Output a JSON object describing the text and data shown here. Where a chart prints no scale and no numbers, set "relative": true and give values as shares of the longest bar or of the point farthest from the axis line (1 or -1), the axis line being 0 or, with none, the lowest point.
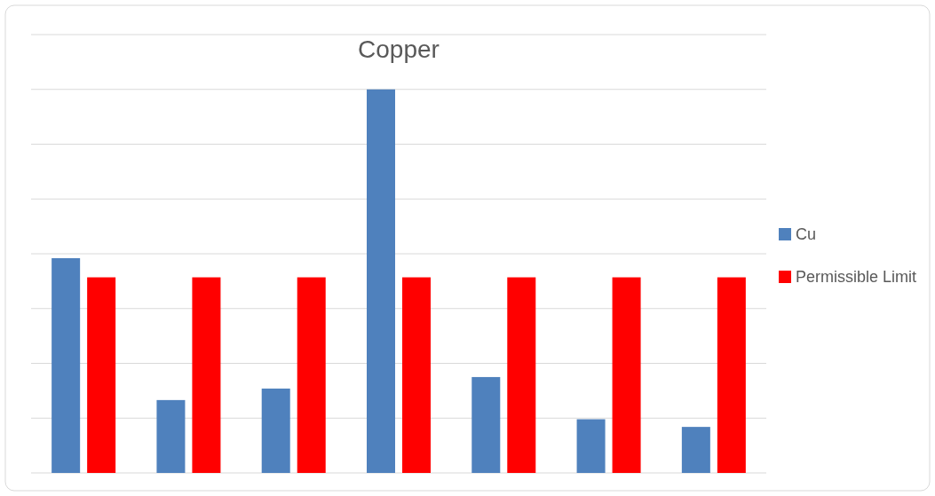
{
  "chart_data": {
    "type": "bar",
    "title": "Copper",
    "relative": true,
    "categories": [
      null,
      null,
      null,
      null,
      null,
      null,
      null
    ],
    "series": [
      {
        "name": "Cu",
        "color": "#4f81bd",
        "values": [
          0.56,
          0.19,
          0.22,
          1,
          0.25,
          0.14,
          0.12
        ]
      },
      {
        "name": "Permissible Limit",
        "color": "#ff0000",
        "values": [
          0.51,
          0.51,
          0.51,
          0.51,
          0.51,
          0.51,
          0.51
        ]
      }
    ],
    "grid": "y",
    "legend": "right"
  }
}
